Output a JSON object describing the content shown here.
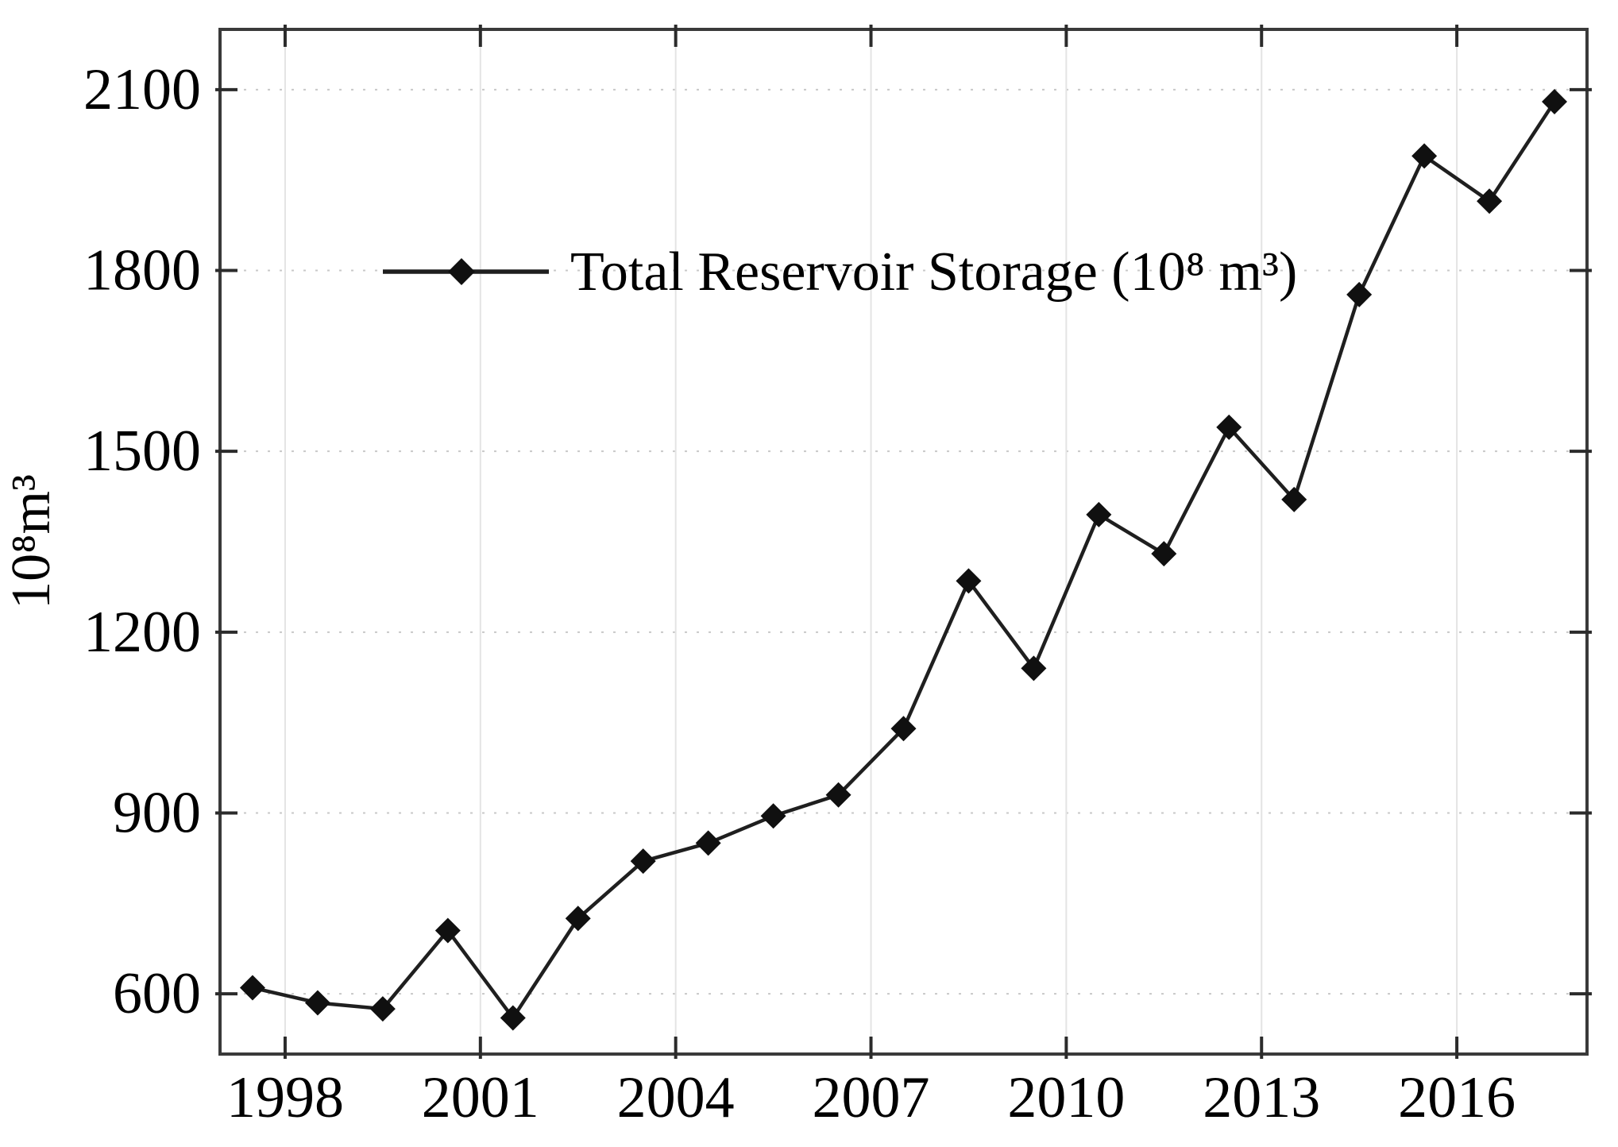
{
  "chart_data": {
    "type": "line",
    "title": "",
    "xlabel": "",
    "ylabel": "10⁸m³",
    "xlim": [
      1997,
      2018
    ],
    "ylim": [
      500,
      2200
    ],
    "x_point_offset": 0.5,
    "grid": {
      "horizontal": "dotted",
      "vertical": "solid"
    },
    "legend": {
      "position": "upper-center",
      "border": false
    },
    "series": [
      {
        "name": "Total Reservoir Storage (10⁸ m³)",
        "marker": "diamond",
        "x": [
          1997,
          1998,
          1999,
          2000,
          2001,
          2002,
          2003,
          2004,
          2005,
          2006,
          2007,
          2008,
          2009,
          2010,
          2011,
          2012,
          2013,
          2014,
          2015,
          2016,
          2017
        ],
        "values": [
          610,
          585,
          575,
          705,
          560,
          725,
          820,
          850,
          895,
          930,
          1040,
          1285,
          1140,
          1395,
          1330,
          1540,
          1420,
          1760,
          1990,
          1915,
          2080
        ]
      }
    ],
    "xticks": {
      "positions": [
        1998,
        2001,
        2004,
        2007,
        2010,
        2013,
        2016
      ],
      "labels": [
        "1998",
        "2001",
        "2004",
        "2007",
        "2010",
        "2013",
        "2016"
      ]
    },
    "yticks": {
      "positions": [
        600,
        900,
        1200,
        1500,
        1800,
        2100
      ],
      "labels": [
        "600",
        "900",
        "1200",
        "1500",
        "1800",
        "2100"
      ]
    },
    "colors": {
      "line": "#1f1f1f",
      "marker": "#101010",
      "box": "#3a3a3a",
      "tick": "#2b2b2b",
      "grid_horizontal": "#c8c8c8",
      "grid_vertical": "#e4e4e4",
      "text": "#000000",
      "background": "#ffffff"
    }
  }
}
